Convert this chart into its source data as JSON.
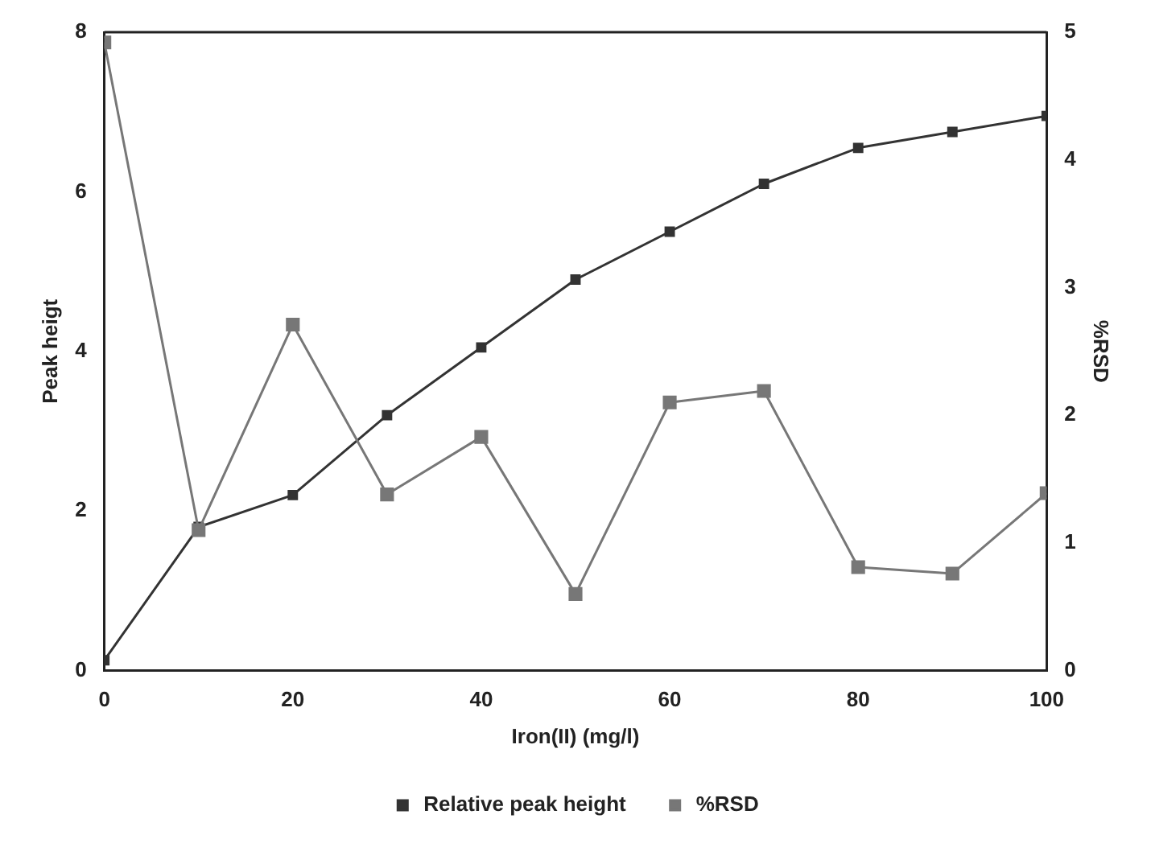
{
  "chart_data": {
    "type": "line",
    "xlabel": "Iron(II) (mg/l)",
    "ylabel": "Peak heigt",
    "y2label": "%RSD",
    "x": [
      0,
      10,
      20,
      30,
      40,
      50,
      60,
      70,
      80,
      90,
      100
    ],
    "xlim": [
      0,
      100
    ],
    "xticks": [
      0,
      20,
      40,
      60,
      80,
      100
    ],
    "ylim": [
      0,
      8
    ],
    "yticks": [
      0,
      2,
      4,
      6,
      8
    ],
    "y2lim": [
      0,
      5
    ],
    "y2ticks": [
      0,
      1,
      2,
      3,
      4,
      5
    ],
    "series": [
      {
        "name": "Relative peak height",
        "color": "#333333",
        "values": [
          0.13,
          1.8,
          2.2,
          3.2,
          4.05,
          4.9,
          5.5,
          6.1,
          6.55,
          6.75,
          6.95
        ]
      },
      {
        "name": "%RSD",
        "color": "#777777",
        "axis": "y2",
        "values": [
          4.92,
          1.1,
          2.71,
          1.38,
          1.83,
          0.6,
          2.1,
          2.19,
          0.81,
          0.76,
          1.39
        ]
      }
    ],
    "marker": "square",
    "line_style": "solid",
    "grid": false,
    "legend": "bottom"
  }
}
